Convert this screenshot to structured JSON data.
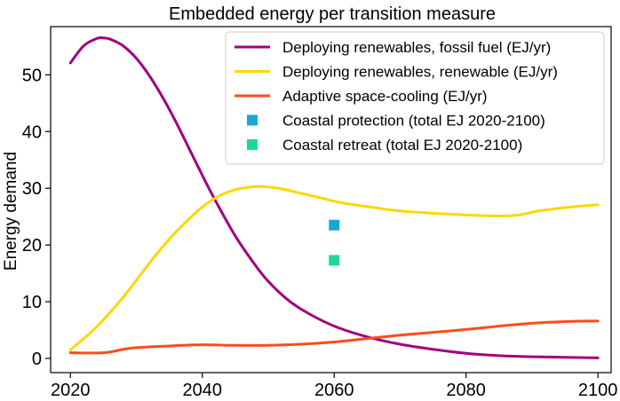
{
  "chart_data": {
    "type": "line",
    "title": "Embedded energy per transition measure",
    "xlabel": "",
    "ylabel": "Energy demand",
    "xlim": [
      2017,
      2102
    ],
    "ylim": [
      -2.5,
      58.5
    ],
    "xticks": [
      2020,
      2040,
      2060,
      2080,
      2100
    ],
    "yticks": [
      0,
      10,
      20,
      30,
      40,
      50
    ],
    "grid": false,
    "legend_position": "top-right",
    "series": [
      {
        "name": "Deploying renewables, fossil fuel (EJ/yr)",
        "kind": "line",
        "color": "#a0007f",
        "x": [
          2020,
          2022,
          2024,
          2025,
          2026,
          2028,
          2030,
          2032,
          2034,
          2036,
          2038,
          2040,
          2042,
          2045,
          2048,
          2050,
          2053,
          2056,
          2060,
          2065,
          2070,
          2075,
          2080,
          2085,
          2090,
          2095,
          2100
        ],
        "y": [
          52.1,
          55.1,
          56.4,
          56.5,
          56.3,
          55.1,
          52.9,
          49.8,
          46.0,
          41.7,
          37.0,
          32.3,
          27.8,
          21.6,
          16.5,
          13.6,
          10.3,
          8.0,
          5.7,
          3.8,
          2.5,
          1.6,
          0.9,
          0.5,
          0.3,
          0.2,
          0.1
        ]
      },
      {
        "name": "Deploying renewables, renewable (EJ/yr)",
        "kind": "line",
        "color": "#ffd700",
        "x": [
          2020,
          2023,
          2025,
          2028,
          2030,
          2033,
          2036,
          2040,
          2043,
          2046,
          2049,
          2052,
          2055,
          2058,
          2060,
          2063,
          2066,
          2070,
          2075,
          2080,
          2085,
          2088,
          2091,
          2095,
          2100
        ],
        "y": [
          1.5,
          4.5,
          6.8,
          10.8,
          13.8,
          18.3,
          22.3,
          26.7,
          28.9,
          30.0,
          30.3,
          29.9,
          29.1,
          28.3,
          27.7,
          27.1,
          26.6,
          26.0,
          25.6,
          25.3,
          25.1,
          25.3,
          26.0,
          26.6,
          27.1
        ]
      },
      {
        "name": "Adaptive space-cooling (EJ/yr)",
        "kind": "line",
        "color": "#ff4a1c",
        "x": [
          2020,
          2025,
          2028,
          2030,
          2035,
          2040,
          2045,
          2050,
          2055,
          2060,
          2065,
          2070,
          2075,
          2080,
          2085,
          2090,
          2095,
          2100
        ],
        "y": [
          1.0,
          1.0,
          1.6,
          1.9,
          2.2,
          2.4,
          2.3,
          2.3,
          2.5,
          2.9,
          3.5,
          4.1,
          4.6,
          5.1,
          5.7,
          6.2,
          6.5,
          6.6
        ]
      },
      {
        "name": "Coastal protection (total EJ 2020-2100)",
        "kind": "marker",
        "color": "#17a8d2",
        "x": [
          2060
        ],
        "y": [
          23.5
        ]
      },
      {
        "name": "Coastal retreat (total EJ 2020-2100)",
        "kind": "marker",
        "color": "#1fd79b",
        "x": [
          2060
        ],
        "y": [
          17.3
        ]
      }
    ]
  }
}
